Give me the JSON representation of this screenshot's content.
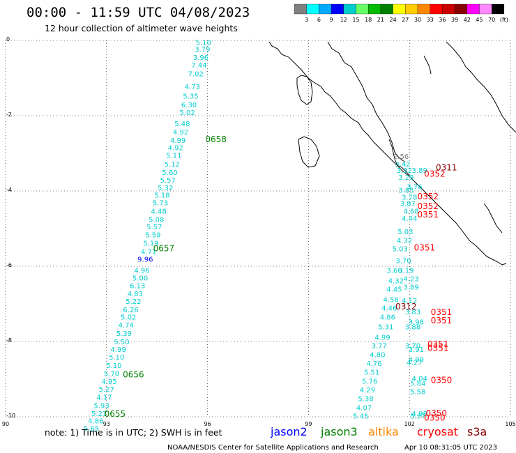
{
  "title": "00:00 - 11:59 UTC 04/08/2023",
  "subtitle": "12 hour collection of altimeter wave heights",
  "legend": {
    "colors": [
      "#808080",
      "#00ffff",
      "#00aaff",
      "#0000ff",
      "#00cccc",
      "#66ff66",
      "#00bb00",
      "#008000",
      "#ffff00",
      "#ffcc00",
      "#ff8800",
      "#ff0000",
      "#cc0000",
      "#880000",
      "#ff00ff",
      "#ff88ff",
      "#000000"
    ],
    "ticks": [
      "3",
      "6",
      "9",
      "12",
      "15",
      "18",
      "21",
      "24",
      "27",
      "30",
      "33",
      "36",
      "39",
      "42",
      "45",
      "70",
      "(ft)"
    ]
  },
  "note": "note: 1) Time is in UTC; 2) SWH is in feet",
  "satellites": [
    {
      "name": "jason2",
      "color": "#0000ff"
    },
    {
      "name": "jason3",
      "color": "#008000"
    },
    {
      "name": "altika",
      "color": "#ff8800"
    },
    {
      "name": "cryosat",
      "color": "#ff0000"
    },
    {
      "name": "s3a",
      "color": "#880000"
    }
  ],
  "footer_left": "NOAA/NESDIS Center for Satellite Applications and Research",
  "footer_right": "Apr 10 08:31:05 UTC 2023",
  "chart_data": {
    "type": "scatter",
    "x_label_values": [
      "90",
      "93",
      "96",
      "99",
      "102",
      "105"
    ],
    "y_label_values": [
      "0",
      "-2",
      "-4",
      "-6",
      "-8",
      "-10"
    ],
    "xlim": [
      90,
      105
    ],
    "ylim": [
      -10,
      0
    ],
    "grid": true,
    "points": [
      {
        "x": 95.88,
        "y": -0.12,
        "label": "5.10",
        "color": "#00cccc"
      },
      {
        "x": 95.85,
        "y": -0.3,
        "label": "3.79",
        "color": "#00cccc"
      },
      {
        "x": 95.8,
        "y": -0.52,
        "label": "3.96",
        "color": "#00cccc"
      },
      {
        "x": 95.75,
        "y": -0.72,
        "label": "7.44",
        "color": "#00cccc"
      },
      {
        "x": 95.65,
        "y": -0.95,
        "label": "7.02",
        "color": "#00cccc"
      },
      {
        "x": 95.55,
        "y": -1.3,
        "label": "4.73",
        "color": "#00cccc"
      },
      {
        "x": 95.5,
        "y": -1.55,
        "label": "5.35",
        "color": "#00cccc"
      },
      {
        "x": 95.45,
        "y": -1.78,
        "label": "6.30",
        "color": "#00cccc"
      },
      {
        "x": 95.4,
        "y": -1.98,
        "label": "5.02",
        "color": "#00cccc"
      },
      {
        "x": 95.25,
        "y": -2.28,
        "label": "5.48",
        "color": "#00cccc"
      },
      {
        "x": 95.2,
        "y": -2.5,
        "label": "4.92",
        "color": "#00cccc"
      },
      {
        "x": 95.12,
        "y": -2.72,
        "label": "4.99",
        "color": "#00cccc"
      },
      {
        "x": 95.05,
        "y": -2.92,
        "label": "4.92",
        "color": "#00cccc"
      },
      {
        "x": 95.0,
        "y": -3.12,
        "label": "5.11",
        "color": "#00cccc"
      },
      {
        "x": 94.95,
        "y": -3.35,
        "label": "5.12",
        "color": "#00cccc"
      },
      {
        "x": 94.88,
        "y": -3.57,
        "label": "5.60",
        "color": "#00cccc"
      },
      {
        "x": 94.82,
        "y": -3.78,
        "label": "5.57",
        "color": "#00cccc"
      },
      {
        "x": 94.75,
        "y": -3.98,
        "label": "5.32",
        "color": "#00cccc"
      },
      {
        "x": 94.65,
        "y": -4.18,
        "label": "5.18",
        "color": "#00cccc"
      },
      {
        "x": 94.6,
        "y": -4.38,
        "label": "5.73",
        "color": "#00cccc"
      },
      {
        "x": 94.55,
        "y": -4.6,
        "label": "4.48",
        "color": "#00cccc"
      },
      {
        "x": 94.48,
        "y": -4.82,
        "label": "5.08",
        "color": "#00cccc"
      },
      {
        "x": 94.42,
        "y": -5.02,
        "label": "5.57",
        "color": "#00cccc"
      },
      {
        "x": 94.38,
        "y": -5.23,
        "label": "5.59",
        "color": "#00cccc"
      },
      {
        "x": 94.32,
        "y": -5.45,
        "label": "5.19",
        "color": "#00cccc"
      },
      {
        "x": 94.25,
        "y": -5.68,
        "label": "4.71",
        "color": "#00cccc"
      },
      {
        "x": 94.15,
        "y": -5.88,
        "label": "9.96",
        "color": "#0000ff"
      },
      {
        "x": 94.05,
        "y": -6.18,
        "label": "4.96",
        "color": "#00cccc"
      },
      {
        "x": 94.0,
        "y": -6.38,
        "label": "5.00",
        "color": "#00cccc"
      },
      {
        "x": 93.92,
        "y": -6.58,
        "label": "6.13",
        "color": "#00cccc"
      },
      {
        "x": 93.85,
        "y": -6.8,
        "label": "4.83",
        "color": "#00cccc"
      },
      {
        "x": 93.8,
        "y": -7.0,
        "label": "5.22",
        "color": "#00cccc"
      },
      {
        "x": 93.72,
        "y": -7.22,
        "label": "6.26",
        "color": "#00cccc"
      },
      {
        "x": 93.65,
        "y": -7.42,
        "label": "5.02",
        "color": "#00cccc"
      },
      {
        "x": 93.58,
        "y": -7.63,
        "label": "4.74",
        "color": "#00cccc"
      },
      {
        "x": 93.52,
        "y": -7.85,
        "label": "5.39",
        "color": "#00cccc"
      },
      {
        "x": 93.45,
        "y": -8.07,
        "label": "5.50",
        "color": "#00cccc"
      },
      {
        "x": 93.35,
        "y": -8.28,
        "label": "4.99",
        "color": "#00cccc"
      },
      {
        "x": 93.3,
        "y": -8.48,
        "label": "5.10",
        "color": "#00cccc"
      },
      {
        "x": 93.22,
        "y": -8.7,
        "label": "5.10",
        "color": "#00cccc"
      },
      {
        "x": 93.15,
        "y": -8.92,
        "label": "5.70",
        "color": "#00cccc"
      },
      {
        "x": 93.08,
        "y": -9.13,
        "label": "4.95",
        "color": "#00cccc"
      },
      {
        "x": 93.0,
        "y": -9.33,
        "label": "5.27",
        "color": "#00cccc"
      },
      {
        "x": 92.93,
        "y": -9.55,
        "label": "4.17",
        "color": "#00cccc"
      },
      {
        "x": 92.85,
        "y": -9.77,
        "label": "5.93",
        "color": "#00cccc"
      },
      {
        "x": 92.78,
        "y": -9.98,
        "label": "5.21",
        "color": "#00cccc"
      },
      {
        "x": 92.68,
        "y": -10.18,
        "label": "4.86",
        "color": "#00cccc"
      },
      {
        "x": 92.55,
        "y": -10.38,
        "label": "5.65",
        "color": "#00cccc"
      },
      {
        "x": 101.75,
        "y": -3.15,
        "label": "2.56",
        "color": "#808080"
      },
      {
        "x": 101.8,
        "y": -3.35,
        "label": "3.42",
        "color": "#00cccc"
      },
      {
        "x": 101.85,
        "y": -3.52,
        "label": "3.32",
        "color": "#00cccc"
      },
      {
        "x": 101.9,
        "y": -3.7,
        "label": "3.29",
        "color": "#00cccc"
      },
      {
        "x": 102.3,
        "y": -3.52,
        "label": "3.89",
        "color": "#00cccc"
      },
      {
        "x": 102.15,
        "y": -3.95,
        "label": "3.76",
        "color": "#00cccc"
      },
      {
        "x": 101.9,
        "y": -4.05,
        "label": "3.85",
        "color": "#00cccc"
      },
      {
        "x": 102.0,
        "y": -4.23,
        "label": "3.78",
        "color": "#00cccc"
      },
      {
        "x": 101.95,
        "y": -4.4,
        "label": "3.87",
        "color": "#00cccc"
      },
      {
        "x": 102.05,
        "y": -4.6,
        "label": "4.68",
        "color": "#00cccc"
      },
      {
        "x": 102.0,
        "y": -4.8,
        "label": "4.44",
        "color": "#00cccc"
      },
      {
        "x": 101.88,
        "y": -5.15,
        "label": "5.03",
        "color": "#00cccc"
      },
      {
        "x": 101.85,
        "y": -5.38,
        "label": "4.32",
        "color": "#00cccc"
      },
      {
        "x": 101.72,
        "y": -5.6,
        "label": "5.03",
        "color": "#00cccc"
      },
      {
        "x": 101.82,
        "y": -5.92,
        "label": "3.70",
        "color": "#00cccc"
      },
      {
        "x": 101.9,
        "y": -6.18,
        "label": "3.19",
        "color": "#00cccc"
      },
      {
        "x": 101.55,
        "y": -6.18,
        "label": "3.66",
        "color": "#00cccc"
      },
      {
        "x": 101.6,
        "y": -6.45,
        "label": "4.32",
        "color": "#00cccc"
      },
      {
        "x": 102.05,
        "y": -6.4,
        "label": "4.23",
        "color": "#00cccc"
      },
      {
        "x": 101.55,
        "y": -6.68,
        "label": "4.45",
        "color": "#00cccc"
      },
      {
        "x": 102.05,
        "y": -6.62,
        "label": "3.89",
        "color": "#00cccc"
      },
      {
        "x": 101.45,
        "y": -6.95,
        "label": "4.58",
        "color": "#00cccc"
      },
      {
        "x": 102.0,
        "y": -6.98,
        "label": "4.12",
        "color": "#00cccc"
      },
      {
        "x": 101.4,
        "y": -7.18,
        "label": "4.46",
        "color": "#00cccc"
      },
      {
        "x": 102.1,
        "y": -7.28,
        "label": "3.83",
        "color": "#00cccc"
      },
      {
        "x": 101.35,
        "y": -7.42,
        "label": "4.86",
        "color": "#00cccc"
      },
      {
        "x": 102.2,
        "y": -7.55,
        "label": "3.98",
        "color": "#00cccc"
      },
      {
        "x": 102.1,
        "y": -7.68,
        "label": "3.88",
        "color": "#00cccc"
      },
      {
        "x": 101.3,
        "y": -7.68,
        "label": "5.31",
        "color": "#00cccc"
      },
      {
        "x": 101.2,
        "y": -7.95,
        "label": "4.99",
        "color": "#00cccc"
      },
      {
        "x": 101.1,
        "y": -8.18,
        "label": "3.77",
        "color": "#00cccc"
      },
      {
        "x": 102.1,
        "y": -8.18,
        "label": "3.70",
        "color": "#00cccc"
      },
      {
        "x": 102.2,
        "y": -8.28,
        "label": "3.91",
        "color": "#00cccc"
      },
      {
        "x": 101.05,
        "y": -8.42,
        "label": "4.80",
        "color": "#00cccc"
      },
      {
        "x": 102.2,
        "y": -8.55,
        "label": "4.99",
        "color": "#00cccc"
      },
      {
        "x": 102.15,
        "y": -8.62,
        "label": "4.27",
        "color": "#00cccc"
      },
      {
        "x": 100.95,
        "y": -8.65,
        "label": "4.76",
        "color": "#00cccc"
      },
      {
        "x": 100.88,
        "y": -8.88,
        "label": "5.51",
        "color": "#00cccc"
      },
      {
        "x": 102.3,
        "y": -9.05,
        "label": "4.04",
        "color": "#00cccc"
      },
      {
        "x": 100.82,
        "y": -9.12,
        "label": "5.76",
        "color": "#00cccc"
      },
      {
        "x": 102.25,
        "y": -9.18,
        "label": "5.84",
        "color": "#00cccc"
      },
      {
        "x": 100.75,
        "y": -9.35,
        "label": "4.29",
        "color": "#00cccc"
      },
      {
        "x": 102.25,
        "y": -9.4,
        "label": "5.58",
        "color": "#00cccc"
      },
      {
        "x": 100.7,
        "y": -9.58,
        "label": "5.38",
        "color": "#00cccc"
      },
      {
        "x": 100.65,
        "y": -9.82,
        "label": "4.07",
        "color": "#00cccc"
      },
      {
        "x": 102.3,
        "y": -9.98,
        "label": "4.98",
        "color": "#00cccc"
      },
      {
        "x": 100.55,
        "y": -10.05,
        "label": "5.45",
        "color": "#00cccc"
      },
      {
        "x": 102.25,
        "y": -10.05,
        "label": "5.37",
        "color": "#00cccc"
      }
    ],
    "pass_times": [
      {
        "x": 96.25,
        "y": -2.7,
        "label": "0658",
        "color": "#008000"
      },
      {
        "x": 94.7,
        "y": -5.6,
        "label": "0657",
        "color": "#008000"
      },
      {
        "x": 93.8,
        "y": -8.95,
        "label": "0656",
        "color": "#008000"
      },
      {
        "x": 93.25,
        "y": -10.0,
        "label": "0655",
        "color": "#008000"
      },
      {
        "x": 103.1,
        "y": -3.45,
        "label": "0311",
        "color": "#880000"
      },
      {
        "x": 102.75,
        "y": -3.62,
        "label": "0352",
        "color": "#ff0000"
      },
      {
        "x": 102.55,
        "y": -4.22,
        "label": "0352",
        "color": "#ff0000"
      },
      {
        "x": 102.55,
        "y": -4.48,
        "label": "0352",
        "color": "#ff0000"
      },
      {
        "x": 102.55,
        "y": -4.7,
        "label": "0351",
        "color": "#ff0000"
      },
      {
        "x": 102.45,
        "y": -5.58,
        "label": "0351",
        "color": "#ff0000"
      },
      {
        "x": 101.9,
        "y": -7.15,
        "label": "0312",
        "color": "#880000"
      },
      {
        "x": 102.95,
        "y": -7.3,
        "label": "0351",
        "color": "#ff0000"
      },
      {
        "x": 102.95,
        "y": -7.52,
        "label": "0351",
        "color": "#ff0000"
      },
      {
        "x": 102.85,
        "y": -8.15,
        "label": "0351",
        "color": "#ff0000"
      },
      {
        "x": 102.85,
        "y": -8.25,
        "label": "0351",
        "color": "#ff0000"
      },
      {
        "x": 102.95,
        "y": -9.1,
        "label": "0350",
        "color": "#ff0000"
      },
      {
        "x": 102.8,
        "y": -9.98,
        "label": "0350",
        "color": "#ff0000"
      },
      {
        "x": 102.75,
        "y": -10.1,
        "label": "0350",
        "color": "#ff0000"
      }
    ]
  }
}
